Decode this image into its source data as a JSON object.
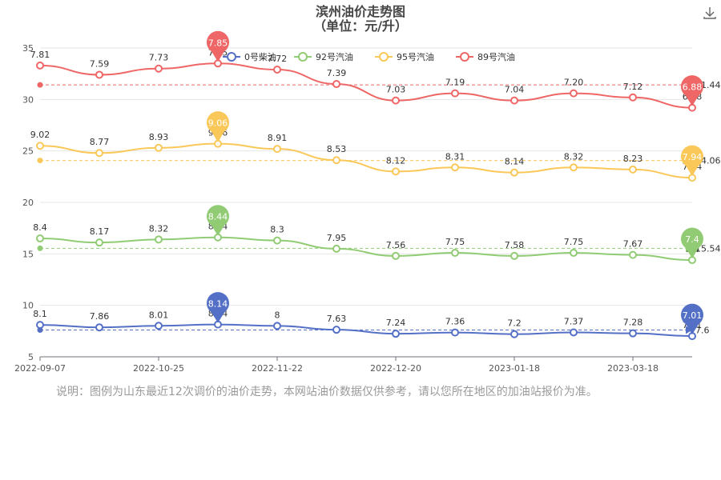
{
  "toolbar": {
    "download_icon": "download-icon"
  },
  "note": "说明：图例为山东最近12次调价的油价走势，本网站油价数据仅供参考，请以您所在地区的加油站报价为准。",
  "chart_data": {
    "type": "line",
    "title": "滨州油价走势图",
    "subtitle": "（单位：元/升）",
    "ylim": [
      5,
      35
    ],
    "yticks": [
      5,
      10,
      15,
      20,
      25,
      30,
      35
    ],
    "x_ticks": [
      "2022-09-07",
      "2022-10-25",
      "2022-11-22",
      "2022-12-20",
      "2023-01-18",
      "2023-03-18"
    ],
    "grid": true,
    "legend_position": "top",
    "dashed_reference_labels": [
      "7.6",
      "15.54",
      "24.06",
      "31.44"
    ],
    "series": [
      {
        "name": "0号柴油",
        "color": "#5470c6",
        "labels": [
          "8.1",
          "7.86",
          "8.01",
          "8.14",
          "8",
          "7.63",
          "7.24",
          "7.36",
          "7.2",
          "7.37",
          "7.28",
          "7.01"
        ],
        "y": [
          8.1,
          7.86,
          8.01,
          8.14,
          8.0,
          7.63,
          7.24,
          7.36,
          7.2,
          7.37,
          7.28,
          7.01
        ],
        "max_label": "8.14",
        "min_label": "7.01"
      },
      {
        "name": "92号汽油",
        "color": "#91cc75",
        "labels": [
          "8.4",
          "8.17",
          "8.32",
          "8.44",
          "8.3",
          "7.95",
          "7.56",
          "7.75",
          "7.58",
          "7.75",
          "7.67",
          "7.4"
        ],
        "y": [
          16.5,
          16.1,
          16.4,
          16.6,
          16.3,
          15.5,
          14.8,
          15.1,
          14.8,
          15.1,
          14.9,
          14.4
        ],
        "max_label": "8.44",
        "min_label": "7.4"
      },
      {
        "name": "95号汽油",
        "color": "#fac858",
        "labels": [
          "9.02",
          "8.77",
          "8.93",
          "9.06",
          "8.91",
          "8.53",
          "8.12",
          "8.31",
          "8.14",
          "8.32",
          "8.23",
          "7.94"
        ],
        "y": [
          25.5,
          24.8,
          25.3,
          25.7,
          25.2,
          24.1,
          23.0,
          23.4,
          22.9,
          23.4,
          23.2,
          22.4
        ],
        "max_label": "9.06",
        "min_label": "7.94"
      },
      {
        "name": "89号汽油",
        "color": "#ee6666",
        "labels": [
          "7.81",
          "7.59",
          "7.73",
          "7.85",
          "7.72",
          "7.39",
          "7.03",
          "7.19",
          "7.04",
          "7.20",
          "7.12",
          "6.88"
        ],
        "y": [
          33.3,
          32.4,
          33.0,
          33.5,
          32.9,
          31.5,
          29.9,
          30.6,
          29.9,
          30.6,
          30.2,
          29.2
        ],
        "max_label": "7.85",
        "min_label": "6.88"
      }
    ]
  }
}
